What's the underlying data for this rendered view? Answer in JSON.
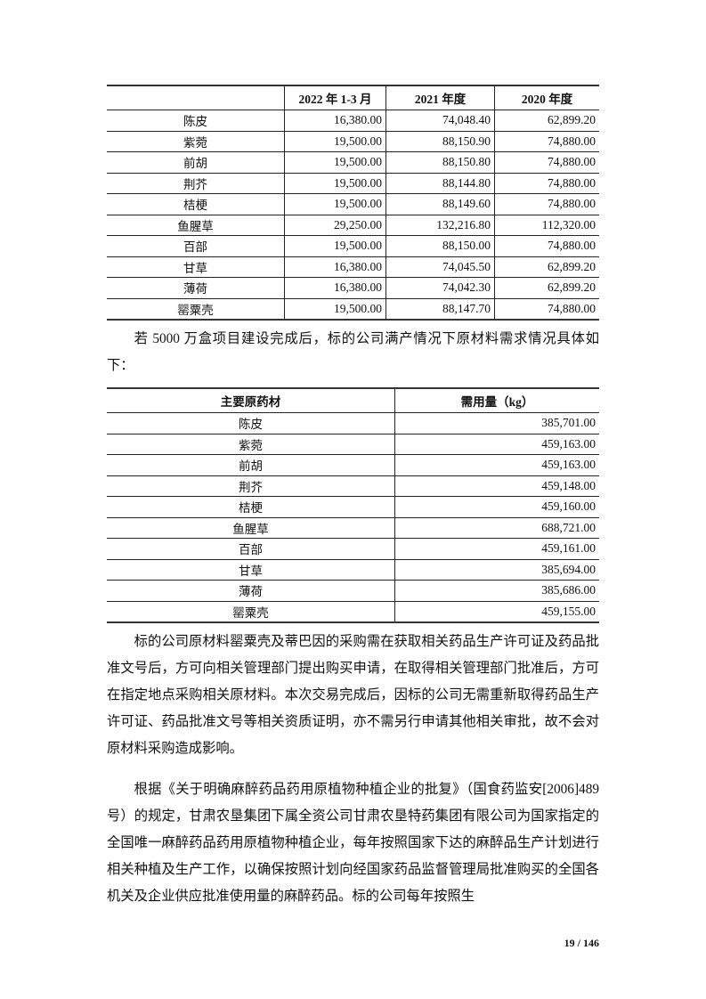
{
  "table1": {
    "headers": [
      "",
      "2022 年 1-3 月",
      "2021 年度",
      "2020 年度"
    ],
    "rows": [
      [
        "陈皮",
        "16,380.00",
        "74,048.40",
        "62,899.20"
      ],
      [
        "紫菀",
        "19,500.00",
        "88,150.90",
        "74,880.00"
      ],
      [
        "前胡",
        "19,500.00",
        "88,150.80",
        "74,880.00"
      ],
      [
        "荆芥",
        "19,500.00",
        "88,144.80",
        "74,880.00"
      ],
      [
        "桔梗",
        "19,500.00",
        "88,149.60",
        "74,880.00"
      ],
      [
        "鱼腥草",
        "29,250.00",
        "132,216.80",
        "112,320.00"
      ],
      [
        "百部",
        "19,500.00",
        "88,150.00",
        "74,880.00"
      ],
      [
        "甘草",
        "16,380.00",
        "74,045.50",
        "62,899.20"
      ],
      [
        "薄荷",
        "16,380.00",
        "74,042.30",
        "62,899.20"
      ],
      [
        "罂粟壳",
        "19,500.00",
        "88,147.70",
        "74,880.00"
      ]
    ]
  },
  "paragraph1": "若 5000 万盒项目建设完成后，标的公司满产情况下原材料需求情况具体如下：",
  "table2": {
    "headers": [
      "主要原药材",
      "需用量（kg）"
    ],
    "rows": [
      [
        "陈皮",
        "385,701.00"
      ],
      [
        "紫菀",
        "459,163.00"
      ],
      [
        "前胡",
        "459,163.00"
      ],
      [
        "荆芥",
        "459,148.00"
      ],
      [
        "桔梗",
        "459,160.00"
      ],
      [
        "鱼腥草",
        "688,721.00"
      ],
      [
        "百部",
        "459,161.00"
      ],
      [
        "甘草",
        "385,694.00"
      ],
      [
        "薄荷",
        "385,686.00"
      ],
      [
        "罂粟壳",
        "459,155.00"
      ]
    ]
  },
  "paragraph2": "标的公司原材料罂粟壳及蒂巴因的采购需在获取相关药品生产许可证及药品批准文号后，方可向相关管理部门提出购买申请，在取得相关管理部门批准后，方可在指定地点采购相关原材料。本次交易完成后，因标的公司无需重新取得药品生产许可证、药品批准文号等相关资质证明，亦不需另行申请其他相关审批，故不会对原材料采购造成影响。",
  "paragraph3": "根据《关于明确麻醉药品药用原植物种植企业的批复》（国食药监安[2006]489 号）的规定，甘肃农垦集团下属全资公司甘肃农垦特药集团有限公司为国家指定的全国唯一麻醉药品药用原植物种植企业，每年按照国家下达的麻醉品生产计划进行相关种植及生产工作，以确保按照计划向经国家药品监督管理局批准购买的全国各机关及企业供应批准使用量的麻醉药品。标的公司每年按照生",
  "page_number": "19 / 146"
}
